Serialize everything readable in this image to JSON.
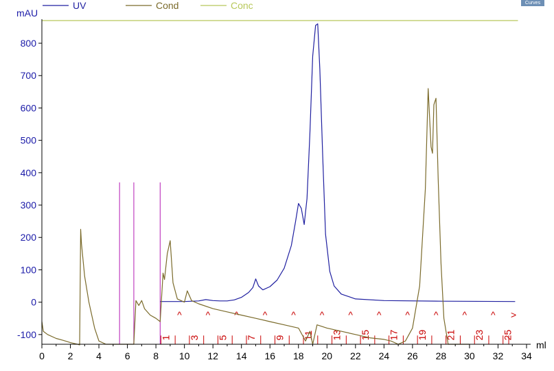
{
  "badge": "Curves",
  "legend": [
    {
      "name": "UV",
      "color": "#1f1fa0"
    },
    {
      "name": "Cond",
      "color": "#7a6a2a"
    },
    {
      "name": "Conc",
      "color": "#b8c85a"
    }
  ],
  "chart_data": {
    "type": "line",
    "ylabel": "mAU",
    "xlabel": "ml",
    "xlim": [
      0,
      34
    ],
    "ylim": [
      -130,
      870
    ],
    "x_ticks": [
      0,
      2,
      4,
      6,
      8,
      10,
      12,
      14,
      16,
      18,
      20,
      22,
      24,
      26,
      28,
      30,
      32,
      34
    ],
    "y_ticks": [
      -100,
      0,
      100,
      200,
      300,
      400,
      500,
      600,
      700,
      800
    ],
    "grid": false,
    "legend_position": "top-left",
    "injection_marks_ml": [
      5.45,
      6.45,
      8.3
    ],
    "fraction_marks": [
      {
        "x": 8.35,
        "label": "1"
      },
      {
        "x": 9.35,
        "label": "^"
      },
      {
        "x": 10.35,
        "label": "3"
      },
      {
        "x": 11.35,
        "label": "^"
      },
      {
        "x": 12.35,
        "label": "5"
      },
      {
        "x": 13.35,
        "label": "^"
      },
      {
        "x": 14.35,
        "label": "7"
      },
      {
        "x": 15.35,
        "label": "^"
      },
      {
        "x": 16.35,
        "label": "9"
      },
      {
        "x": 17.35,
        "label": "^"
      },
      {
        "x": 18.35,
        "label": "11"
      },
      {
        "x": 19.35,
        "label": "^"
      },
      {
        "x": 20.35,
        "label": "13"
      },
      {
        "x": 21.35,
        "label": "^"
      },
      {
        "x": 22.35,
        "label": "15"
      },
      {
        "x": 23.35,
        "label": "^"
      },
      {
        "x": 24.35,
        "label": "17"
      },
      {
        "x": 25.35,
        "label": "^"
      },
      {
        "x": 26.35,
        "label": "19"
      },
      {
        "x": 27.35,
        "label": "^"
      },
      {
        "x": 28.35,
        "label": "21"
      },
      {
        "x": 29.35,
        "label": "^"
      },
      {
        "x": 30.35,
        "label": "23"
      },
      {
        "x": 31.35,
        "label": "^"
      },
      {
        "x": 32.35,
        "label": "25"
      },
      {
        "x": 32.75,
        "label": ">"
      }
    ],
    "series": [
      {
        "name": "UV",
        "x": [
          8.3,
          9.0,
          10.0,
          11.0,
          11.5,
          12.0,
          12.5,
          13.0,
          13.5,
          14.0,
          14.5,
          14.8,
          15.0,
          15.2,
          15.5,
          16.0,
          16.5,
          17.0,
          17.5,
          17.8,
          18.0,
          18.2,
          18.4,
          18.6,
          18.8,
          19.0,
          19.2,
          19.35,
          19.5,
          19.7,
          19.9,
          20.2,
          20.5,
          21.0,
          22.0,
          24.0,
          28.0,
          33.2
        ],
        "values": [
          2,
          2,
          2,
          4,
          8,
          5,
          4,
          4,
          7,
          15,
          30,
          45,
          72,
          50,
          38,
          48,
          68,
          105,
          175,
          250,
          305,
          290,
          240,
          320,
          520,
          760,
          855,
          860,
          720,
          450,
          210,
          95,
          50,
          25,
          10,
          5,
          3,
          2
        ]
      },
      {
        "name": "Cond",
        "x": [
          0.0,
          0.1,
          0.4,
          1.0,
          1.5,
          2.0,
          2.5,
          2.65,
          2.72,
          2.78,
          3.0,
          3.3,
          3.7,
          4.0,
          4.5,
          5.0,
          5.45,
          6.45,
          6.6,
          6.8,
          7.0,
          7.2,
          7.6,
          8.0,
          8.3,
          8.5,
          8.6,
          8.8,
          9.0,
          9.2,
          9.5,
          10.0,
          10.2,
          10.5,
          11.0,
          12.0,
          13.0,
          14.0,
          15.0,
          16.0,
          17.0,
          18.0,
          18.5,
          18.8,
          19.0,
          19.3,
          20.0,
          21.0,
          22.0,
          23.0,
          24.0,
          24.5,
          25.0,
          25.5,
          26.0,
          26.5,
          26.9,
          27.1,
          27.3,
          27.4,
          27.5,
          27.65,
          27.8,
          28.0,
          28.2,
          28.5,
          29.0,
          30.0
        ],
        "values": [
          -60,
          -90,
          -100,
          -112,
          -118,
          -125,
          -130,
          -132,
          225,
          180,
          80,
          0,
          -80,
          -120,
          -130,
          -130,
          -130,
          -130,
          5,
          -10,
          5,
          -20,
          -40,
          -50,
          -60,
          90,
          70,
          150,
          190,
          60,
          10,
          0,
          35,
          5,
          -5,
          -20,
          -30,
          -40,
          -50,
          -60,
          -70,
          -80,
          -120,
          -90,
          -130,
          -70,
          -80,
          -90,
          -100,
          -110,
          -115,
          -120,
          -130,
          -120,
          -80,
          50,
          350,
          660,
          480,
          460,
          610,
          630,
          380,
          120,
          -50,
          -130,
          -130,
          -130
        ]
      },
      {
        "name": "Conc",
        "x": [
          0,
          33.4
        ],
        "values": [
          870,
          870
        ]
      }
    ]
  }
}
